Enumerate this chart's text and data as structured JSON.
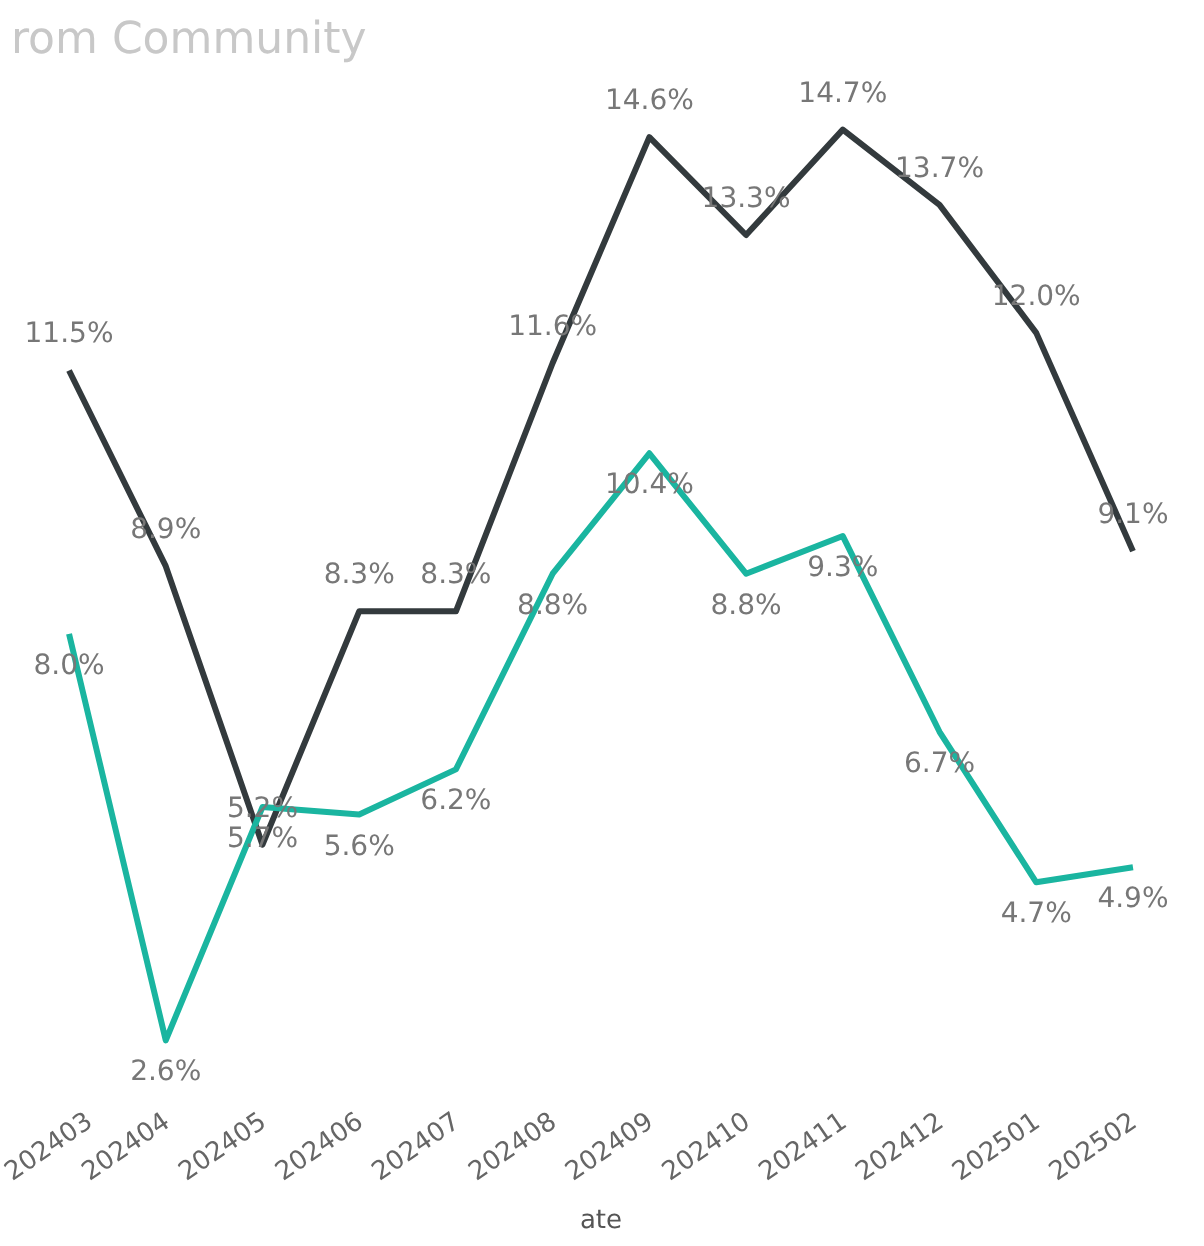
{
  "chart_data": {
    "type": "line",
    "title": "rom Community",
    "xlabel": "ate",
    "categories": [
      "202403",
      "202404",
      "202405",
      "202406",
      "202407",
      "202408",
      "202409",
      "202410",
      "202411",
      "202412",
      "202501",
      "202502"
    ],
    "series": [
      {
        "color": "#333a3d",
        "values": [
          11.5,
          8.9,
          5.2,
          8.3,
          8.3,
          11.6,
          14.6,
          13.3,
          14.7,
          13.7,
          12.0,
          9.1
        ],
        "value_labels": [
          "11.5%",
          "8.9%",
          "5.2%",
          "8.3%",
          "8.3%",
          "11.6%",
          "14.6%",
          "13.3%",
          "14.7%",
          "13.7%",
          "12.0%",
          "9.1%"
        ]
      },
      {
        "color": "#1ab5a0",
        "values": [
          8.0,
          2.6,
          5.7,
          5.6,
          6.2,
          8.8,
          10.4,
          8.8,
          9.3,
          6.7,
          4.7,
          4.9
        ],
        "value_labels": [
          "8.0%",
          "2.6%",
          "5.7%",
          "5.6%",
          "6.2%",
          "8.8%",
          "10.4%",
          "8.8%",
          "9.3%",
          "6.7%",
          "4.7%",
          "4.9%"
        ]
      }
    ],
    "tick_labels": "x",
    "marker": "none",
    "line_style": "solid"
  }
}
